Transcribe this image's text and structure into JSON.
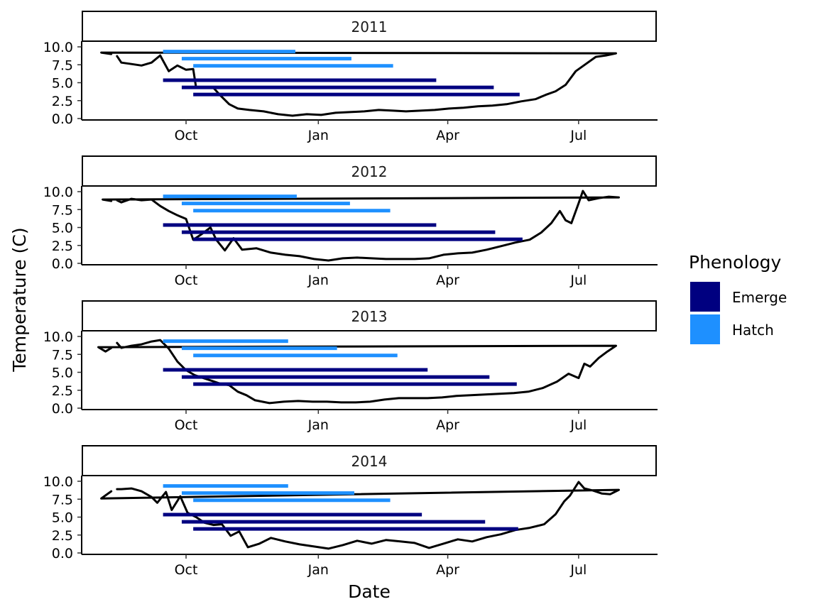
{
  "chart_data": {
    "type": "line",
    "facet_labels": [
      "2011",
      "2012",
      "2013",
      "2014"
    ],
    "xlabel": "Date",
    "ylabel": "Temperature (C)",
    "x_ticks": [
      "Oct",
      "Jan",
      "Apr",
      "Jul"
    ],
    "x_tick_dates": [
      "Oct 1",
      "Jan 1",
      "Apr 1",
      "Jul 1"
    ],
    "x_range": [
      "Aug 10",
      "Aug 12"
    ],
    "y_ticks": [
      "0.0",
      "2.5",
      "5.0",
      "7.5",
      "10.0"
    ],
    "ylim": [
      0,
      10.6
    ],
    "legend": {
      "title": "Phenology",
      "placement": "right",
      "items": [
        {
          "label": "Emerge",
          "color": "#000080"
        },
        {
          "label": "Hatch",
          "color": "#1E90FF"
        }
      ]
    },
    "temperature_color": "#000000",
    "facets": [
      {
        "label": "2011",
        "temperature": [
          [
            "Aug 14",
            8.7
          ],
          [
            "Aug 17",
            7.8
          ],
          [
            "Aug 24",
            7.6
          ],
          [
            "Aug 31",
            7.4
          ],
          [
            "Sep 7",
            7.8
          ],
          [
            "Sep 13",
            8.8
          ],
          [
            "Sep 19",
            6.6
          ],
          [
            "Sep 25",
            7.4
          ],
          [
            "Oct 1",
            6.8
          ],
          [
            "Oct 6",
            6.9
          ],
          [
            "Oct 8",
            4.3
          ],
          [
            "Oct 14",
            4.4
          ],
          [
            "Oct 20",
            4.3
          ],
          [
            "Oct 25",
            3.2
          ],
          [
            "Oct 31",
            2.0
          ],
          [
            "Nov 6",
            1.4
          ],
          [
            "Nov 14",
            1.2
          ],
          [
            "Nov 24",
            1.0
          ],
          [
            "Dec 4",
            0.6
          ],
          [
            "Dec 14",
            0.4
          ],
          [
            "Dec 24",
            0.6
          ],
          [
            "Jan 3",
            0.5
          ],
          [
            "Jan 13",
            0.8
          ],
          [
            "Jan 23",
            0.9
          ],
          [
            "Feb 2",
            1.0
          ],
          [
            "Feb 12",
            1.2
          ],
          [
            "Feb 22",
            1.1
          ],
          [
            "Mar 3",
            1.0
          ],
          [
            "Mar 13",
            1.1
          ],
          [
            "Mar 23",
            1.2
          ],
          [
            "Apr 2",
            1.4
          ],
          [
            "Apr 12",
            1.5
          ],
          [
            "Apr 22",
            1.7
          ],
          [
            "May 2",
            1.8
          ],
          [
            "May 12",
            2.0
          ],
          [
            "May 22",
            2.4
          ],
          [
            "Jun 1",
            2.7
          ],
          [
            "Jun 8",
            3.3
          ],
          [
            "Jun 15",
            3.8
          ],
          [
            "Jun 22",
            4.7
          ],
          [
            "Jun 29",
            6.6
          ],
          [
            "Jul 6",
            7.6
          ],
          [
            "Jul 13",
            8.6
          ],
          [
            "Jul 20",
            8.8
          ],
          [
            "Jul 27",
            9.1
          ],
          [
            "Aug 3",
            9.2
          ],
          [
            "Aug 10",
            9.0
          ]
        ],
        "hatch": [
          [
            "Sep 15",
            "Dec 16"
          ],
          [
            "Sep 28",
            "Jan 24"
          ],
          [
            "Oct 6",
            "Feb 22"
          ]
        ],
        "emerge": [
          [
            "Sep 15",
            "Mar 24"
          ],
          [
            "Sep 28",
            "May 3"
          ],
          [
            "Oct 6",
            "May 21"
          ]
        ]
      },
      {
        "label": "2012",
        "temperature": [
          [
            "Aug 14",
            8.8
          ],
          [
            "Aug 17",
            8.5
          ],
          [
            "Aug 24",
            9.0
          ],
          [
            "Aug 31",
            8.8
          ],
          [
            "Sep 7",
            8.9
          ],
          [
            "Sep 13",
            8.0
          ],
          [
            "Sep 19",
            7.3
          ],
          [
            "Sep 25",
            6.7
          ],
          [
            "Oct 1",
            6.2
          ],
          [
            "Oct 6",
            3.3
          ],
          [
            "Oct 12",
            4.1
          ],
          [
            "Oct 18",
            5.0
          ],
          [
            "Oct 22",
            3.3
          ],
          [
            "Oct 28",
            1.8
          ],
          [
            "Nov 3",
            3.5
          ],
          [
            "Nov 9",
            1.9
          ],
          [
            "Nov 19",
            2.1
          ],
          [
            "Nov 29",
            1.5
          ],
          [
            "Dec 9",
            1.2
          ],
          [
            "Dec 19",
            1.0
          ],
          [
            "Dec 29",
            0.6
          ],
          [
            "Jan 8",
            0.4
          ],
          [
            "Jan 18",
            0.7
          ],
          [
            "Jan 28",
            0.8
          ],
          [
            "Feb 7",
            0.7
          ],
          [
            "Feb 17",
            0.6
          ],
          [
            "Feb 27",
            0.6
          ],
          [
            "Mar 9",
            0.6
          ],
          [
            "Mar 19",
            0.7
          ],
          [
            "Mar 29",
            1.2
          ],
          [
            "Apr 8",
            1.4
          ],
          [
            "Apr 18",
            1.5
          ],
          [
            "Apr 28",
            1.9
          ],
          [
            "May 8",
            2.4
          ],
          [
            "May 18",
            2.9
          ],
          [
            "May 28",
            3.3
          ],
          [
            "Jun 5",
            4.3
          ],
          [
            "Jun 12",
            5.6
          ],
          [
            "Jun 18",
            7.3
          ],
          [
            "Jun 22",
            6.0
          ],
          [
            "Jun 26",
            5.6
          ],
          [
            "Jul 1",
            8.4
          ],
          [
            "Jul 4",
            10.1
          ],
          [
            "Jul 8",
            8.8
          ],
          [
            "Jul 15",
            9.1
          ],
          [
            "Jul 22",
            9.3
          ],
          [
            "Jul 29",
            9.2
          ],
          [
            "Aug 4",
            8.9
          ],
          [
            "Aug 10",
            8.7
          ]
        ],
        "hatch": [
          [
            "Sep 15",
            "Dec 17"
          ],
          [
            "Sep 28",
            "Jan 23"
          ],
          [
            "Oct 6",
            "Feb 20"
          ]
        ],
        "emerge": [
          [
            "Sep 15",
            "Mar 24"
          ],
          [
            "Sep 28",
            "May 4"
          ],
          [
            "Oct 6",
            "May 23"
          ]
        ]
      },
      {
        "label": "2013",
        "temperature": [
          [
            "Aug 14",
            9.1
          ],
          [
            "Aug 17",
            8.4
          ],
          [
            "Aug 24",
            8.7
          ],
          [
            "Aug 31",
            8.9
          ],
          [
            "Sep 7",
            9.3
          ],
          [
            "Sep 13",
            9.5
          ],
          [
            "Sep 19",
            8.3
          ],
          [
            "Sep 25",
            6.5
          ],
          [
            "Oct 1",
            5.3
          ],
          [
            "Oct 7",
            4.6
          ],
          [
            "Oct 13",
            4.2
          ],
          [
            "Oct 19",
            3.8
          ],
          [
            "Oct 25",
            3.4
          ],
          [
            "Oct 31",
            3.2
          ],
          [
            "Nov 6",
            2.3
          ],
          [
            "Nov 12",
            1.8
          ],
          [
            "Nov 18",
            1.1
          ],
          [
            "Nov 28",
            0.7
          ],
          [
            "Dec 8",
            0.9
          ],
          [
            "Dec 18",
            1.0
          ],
          [
            "Dec 28",
            0.9
          ],
          [
            "Jan 7",
            0.9
          ],
          [
            "Jan 17",
            0.8
          ],
          [
            "Jan 27",
            0.8
          ],
          [
            "Feb 6",
            0.9
          ],
          [
            "Feb 16",
            1.2
          ],
          [
            "Feb 26",
            1.4
          ],
          [
            "Mar 8",
            1.4
          ],
          [
            "Mar 18",
            1.4
          ],
          [
            "Mar 28",
            1.5
          ],
          [
            "Apr 7",
            1.7
          ],
          [
            "Apr 17",
            1.8
          ],
          [
            "Apr 27",
            1.9
          ],
          [
            "May 7",
            2.0
          ],
          [
            "May 17",
            2.1
          ],
          [
            "May 27",
            2.3
          ],
          [
            "Jun 6",
            2.8
          ],
          [
            "Jun 16",
            3.7
          ],
          [
            "Jun 24",
            4.8
          ],
          [
            "Jul 1",
            4.2
          ],
          [
            "Jul 5",
            6.2
          ],
          [
            "Jul 9",
            5.8
          ],
          [
            "Jul 15",
            7.0
          ],
          [
            "Jul 21",
            7.9
          ],
          [
            "Jul 27",
            8.7
          ],
          [
            "Aug 1",
            8.5
          ],
          [
            "Aug 6",
            7.9
          ],
          [
            "Aug 10",
            8.4
          ]
        ],
        "hatch": [
          [
            "Sep 15",
            "Dec 11"
          ],
          [
            "Sep 28",
            "Jan 14"
          ],
          [
            "Oct 6",
            "Feb 25"
          ]
        ],
        "emerge": [
          [
            "Sep 15",
            "Mar 18"
          ],
          [
            "Sep 28",
            "Apr 30"
          ],
          [
            "Oct 6",
            "May 19"
          ]
        ]
      },
      {
        "label": "2014",
        "temperature": [
          [
            "Aug 14",
            8.9
          ],
          [
            "Aug 17",
            8.9
          ],
          [
            "Aug 24",
            9.0
          ],
          [
            "Aug 31",
            8.6
          ],
          [
            "Sep 7",
            7.8
          ],
          [
            "Sep 11",
            7.0
          ],
          [
            "Sep 17",
            8.5
          ],
          [
            "Sep 21",
            6.0
          ],
          [
            "Sep 27",
            7.9
          ],
          [
            "Oct 2",
            5.6
          ],
          [
            "Oct 8",
            5.0
          ],
          [
            "Oct 14",
            4.2
          ],
          [
            "Oct 20",
            3.9
          ],
          [
            "Oct 26",
            4.0
          ],
          [
            "Nov 1",
            2.4
          ],
          [
            "Nov 7",
            3.0
          ],
          [
            "Nov 13",
            0.8
          ],
          [
            "Nov 21",
            1.3
          ],
          [
            "Nov 29",
            2.1
          ],
          [
            "Dec 9",
            1.6
          ],
          [
            "Dec 19",
            1.2
          ],
          [
            "Dec 29",
            0.9
          ],
          [
            "Jan 8",
            0.6
          ],
          [
            "Jan 18",
            1.1
          ],
          [
            "Jan 28",
            1.7
          ],
          [
            "Feb 7",
            1.3
          ],
          [
            "Feb 17",
            1.8
          ],
          [
            "Feb 27",
            1.6
          ],
          [
            "Mar 9",
            1.4
          ],
          [
            "Mar 19",
            0.7
          ],
          [
            "Mar 29",
            1.3
          ],
          [
            "Apr 8",
            1.9
          ],
          [
            "Apr 18",
            1.6
          ],
          [
            "Apr 28",
            2.2
          ],
          [
            "May 8",
            2.6
          ],
          [
            "May 18",
            3.2
          ],
          [
            "May 28",
            3.5
          ],
          [
            "Jun 7",
            4.0
          ],
          [
            "Jun 15",
            5.4
          ],
          [
            "Jun 21",
            7.2
          ],
          [
            "Jun 25",
            8.0
          ],
          [
            "Jul 1",
            9.9
          ],
          [
            "Jul 5",
            9.0
          ],
          [
            "Jul 11",
            8.7
          ],
          [
            "Jul 17",
            8.3
          ],
          [
            "Jul 23",
            8.2
          ],
          [
            "Jul 29",
            8.8
          ],
          [
            "Aug 3",
            7.6
          ],
          [
            "Aug 10",
            8.6
          ]
        ],
        "hatch": [
          [
            "Sep 15",
            "Dec 11"
          ],
          [
            "Sep 28",
            "Jan 26"
          ],
          [
            "Oct 6",
            "Feb 20"
          ]
        ],
        "emerge": [
          [
            "Sep 15",
            "Mar 14"
          ],
          [
            "Sep 28",
            "Apr 27"
          ],
          [
            "Oct 6",
            "May 20"
          ]
        ]
      }
    ]
  }
}
